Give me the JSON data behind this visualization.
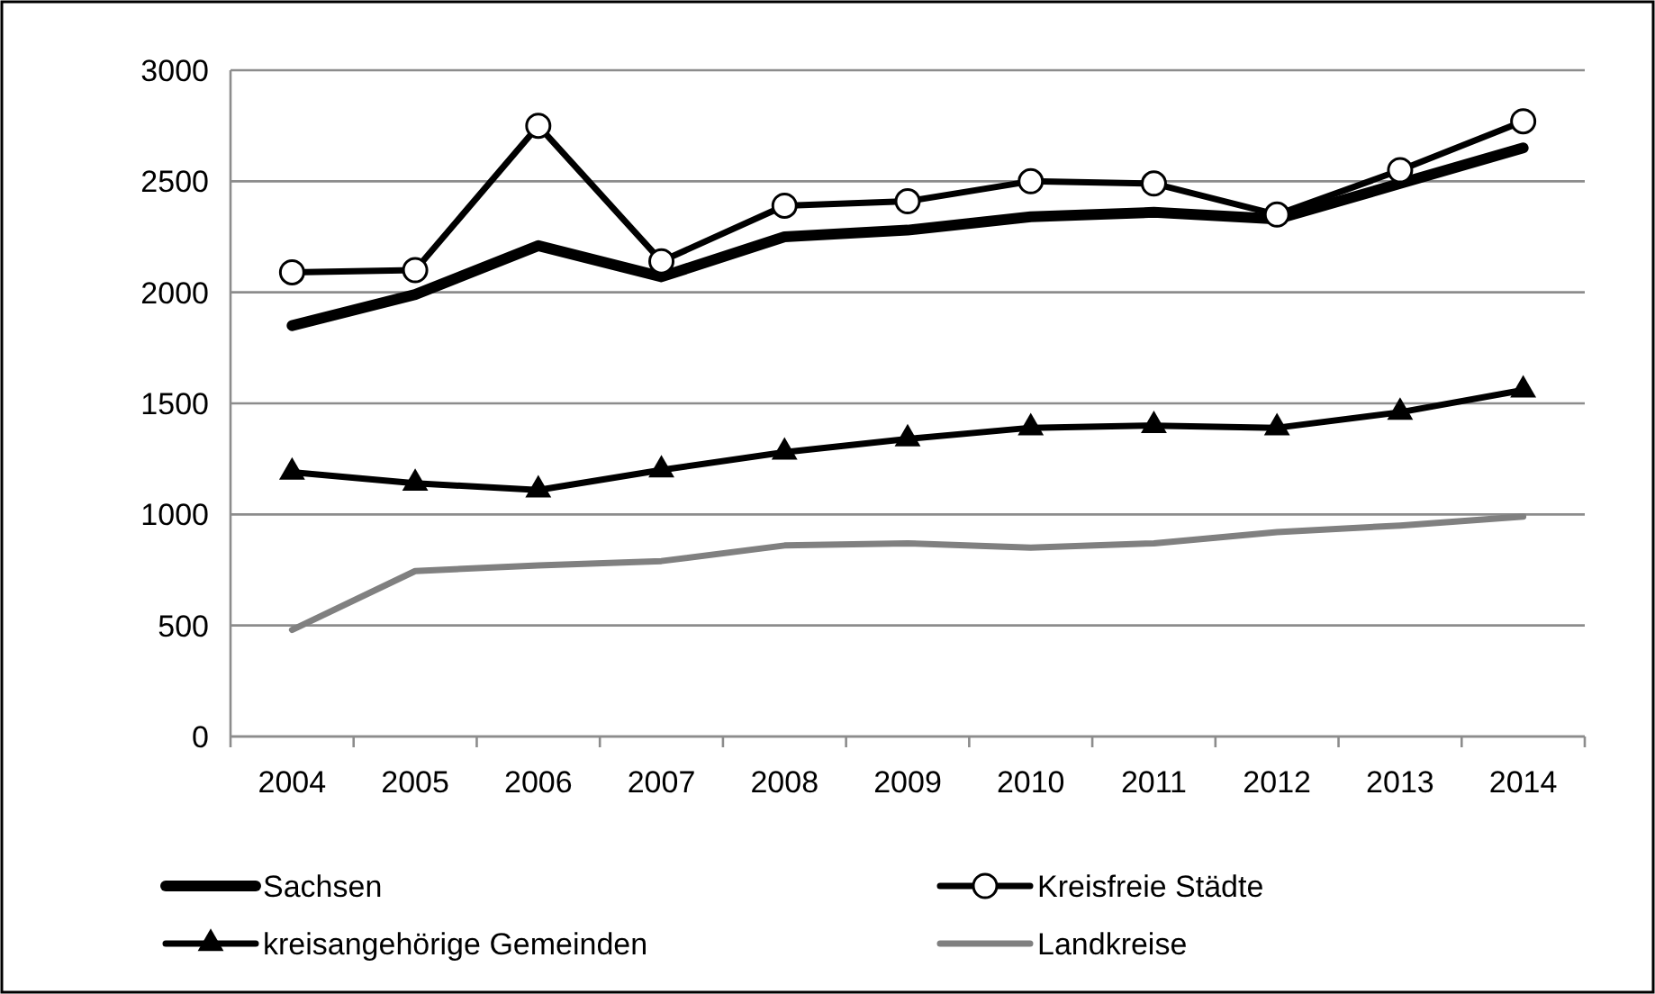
{
  "chart_data": {
    "type": "line",
    "categories": [
      "2004",
      "2005",
      "2006",
      "2007",
      "2008",
      "2009",
      "2010",
      "2011",
      "2012",
      "2013",
      "2014"
    ],
    "ylim": [
      0,
      3000
    ],
    "yticks": [
      0,
      500,
      1000,
      1500,
      2000,
      2500,
      3000
    ],
    "grid": "y",
    "legend": "bottom",
    "series": [
      {
        "name": "Sachsen",
        "color": "#000000",
        "marker": "none",
        "values": [
          1850,
          1990,
          2210,
          2070,
          2250,
          2280,
          2340,
          2360,
          2330,
          2490,
          2650
        ]
      },
      {
        "name": "Kreisfreie Städte",
        "color": "#000000",
        "marker": "circle",
        "values": [
          2090,
          2100,
          2750,
          2140,
          2390,
          2410,
          2500,
          2490,
          2350,
          2550,
          2770
        ]
      },
      {
        "name": "kreisangehörige Gemeinden",
        "color": "#000000",
        "marker": "triangle",
        "values": [
          1190,
          1140,
          1110,
          1200,
          1280,
          1340,
          1390,
          1400,
          1390,
          1460,
          1560
        ]
      },
      {
        "name": "Landkreise",
        "color": "#808080",
        "marker": "none",
        "values": [
          480,
          745,
          770,
          790,
          860,
          870,
          850,
          870,
          920,
          950,
          990
        ]
      }
    ]
  }
}
